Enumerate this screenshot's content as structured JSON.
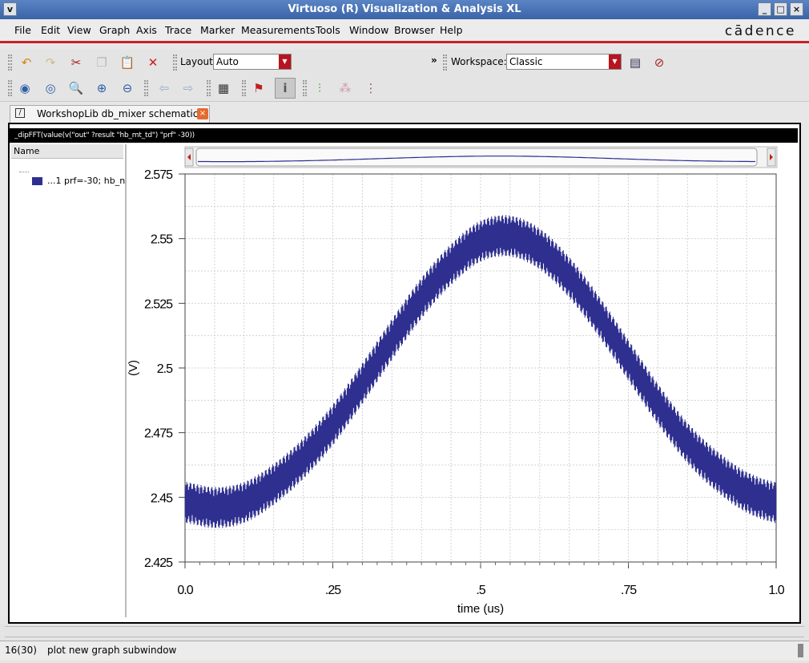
{
  "window": {
    "title": "Virtuoso (R) Visualization & Analysis XL",
    "brand": "cādence"
  },
  "menu": [
    "File",
    "Edit",
    "View",
    "Graph",
    "Axis",
    "Trace",
    "Marker",
    "Measurements",
    "Tools",
    "Window",
    "Browser",
    "Help"
  ],
  "toolbar": {
    "layout_label": "Layout:",
    "layout_value": "Auto",
    "workspace_label": "Workspace:",
    "workspace_value": "Classic",
    "overflow": "»"
  },
  "tab": {
    "label": "WorkshopLib db_mixer schematic"
  },
  "expression": "_dipFFT(value(v(\"out\" ?result \"hb_mt_td\") \"prf\" -30))",
  "browser": {
    "header": "Name",
    "trace_label": "...1 prf=-30; hb_n"
  },
  "colors": {
    "trace": "#2e2f8f",
    "accent": "#b8141f"
  },
  "chart_data": {
    "type": "line",
    "title": "",
    "xlabel": "time (us)",
    "ylabel": "(V)",
    "xlim": [
      0.0,
      1.0
    ],
    "ylim": [
      2.425,
      2.575
    ],
    "xticks": [
      "0.0",
      ".25",
      ".5",
      ".75",
      "1.0"
    ],
    "yticks": [
      "2.425",
      "2.45",
      "2.475",
      "2.5",
      "2.525",
      "2.55",
      "2.575"
    ],
    "grid": true,
    "series": [
      {
        "name": "...1 prf=-30; hb_n",
        "x": [
          0.0,
          0.05,
          0.1,
          0.15,
          0.2,
          0.25,
          0.3,
          0.35,
          0.4,
          0.45,
          0.5,
          0.55,
          0.6,
          0.65,
          0.7,
          0.75,
          0.8,
          0.85,
          0.9,
          0.95,
          1.0
        ],
        "y": [
          2.448,
          2.446,
          2.448,
          2.455,
          2.465,
          2.478,
          2.494,
          2.511,
          2.527,
          2.54,
          2.549,
          2.551,
          2.546,
          2.535,
          2.52,
          2.503,
          2.486,
          2.471,
          2.46,
          2.452,
          2.448
        ],
        "ripple": 0.008
      }
    ],
    "overview_slider": {
      "range": [
        0.0,
        1.0
      ]
    }
  },
  "status": {
    "left": "16(30)",
    "message": "plot new graph subwindow"
  }
}
